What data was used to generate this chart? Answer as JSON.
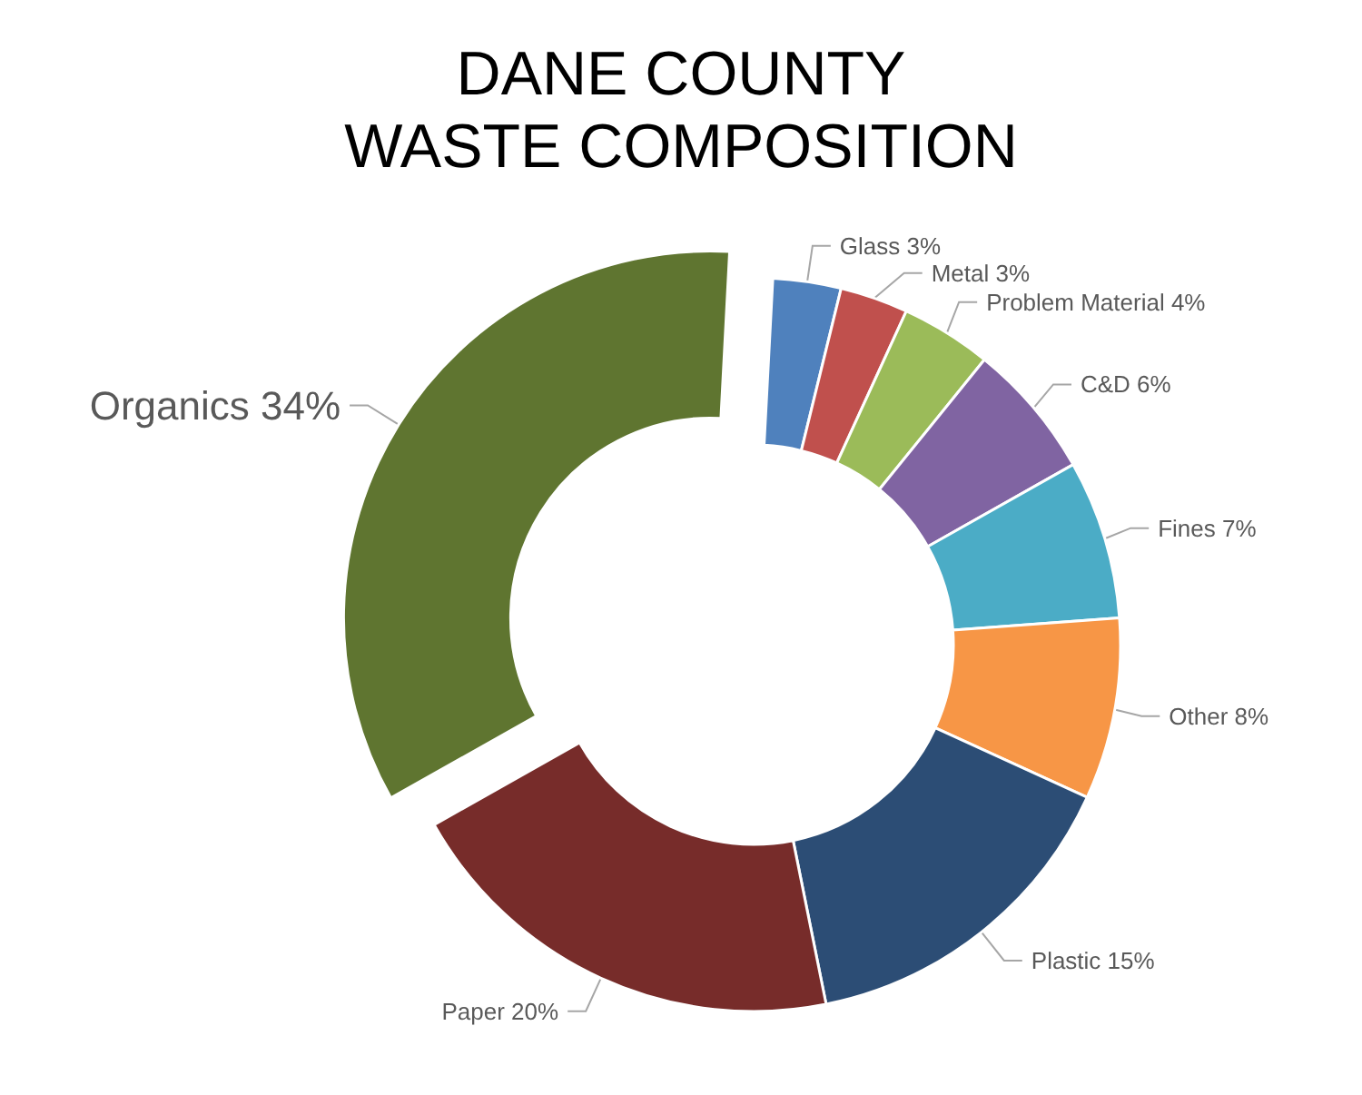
{
  "chart_data": {
    "type": "donut",
    "title": "DANE COUNTY\nWASTE COMPOSITION",
    "categories": [
      "Glass",
      "Metal",
      "Problem Material",
      "C&D",
      "Fines",
      "Other",
      "Plastic",
      "Paper",
      "Organics"
    ],
    "values": [
      3,
      3,
      4,
      6,
      7,
      8,
      15,
      20,
      34
    ],
    "value_labels": [
      "3%",
      "3%",
      "4%",
      "6%",
      "7%",
      "8%",
      "15%",
      "20%",
      "34%"
    ],
    "colors": [
      "#4f81bd",
      "#c0504d",
      "#9bbb59",
      "#8064a2",
      "#4bacc6",
      "#f79646",
      "#2c4d75",
      "#772c2a",
      "#5f7530"
    ],
    "legend": false
  }
}
